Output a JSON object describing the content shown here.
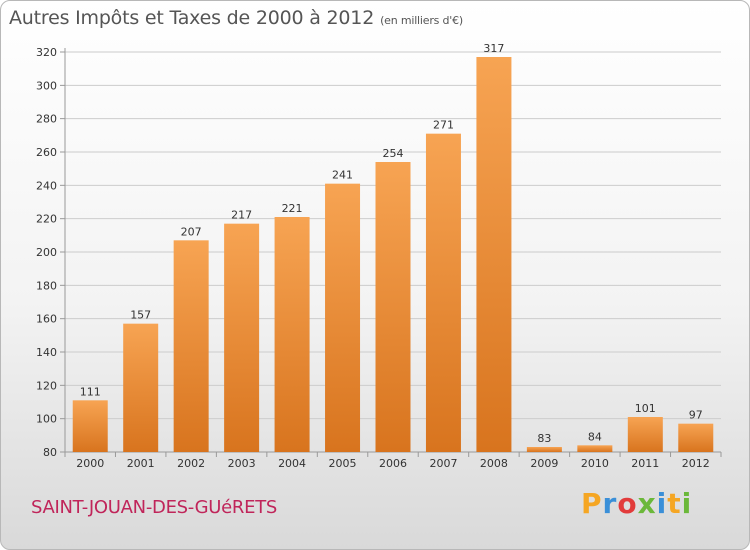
{
  "header": {
    "title": "Autres Impôts et Taxes de 2000 à 2012",
    "unit": "(en milliers d'€)"
  },
  "commune": "SAINT-JOUAN-DES-GUéRETS",
  "logo": {
    "letters": [
      "P",
      "r",
      "o",
      "x",
      "i",
      "t",
      "i"
    ],
    "colors": [
      "#f5a623",
      "#3a8fd8",
      "#e23b3b",
      "#6bb83a",
      "#3a8fd8",
      "#f5a623",
      "#6bb83a"
    ]
  },
  "colors": {
    "bar_top": "#f7a453",
    "bar_bottom": "#d8741e",
    "grid": "#cccccc",
    "axis": "#999999"
  },
  "chart_data": {
    "type": "bar",
    "title": "Autres Impôts et Taxes de 2000 à 2012",
    "xlabel": "",
    "ylabel": "",
    "categories": [
      "2000",
      "2001",
      "2002",
      "2003",
      "2004",
      "2005",
      "2006",
      "2007",
      "2008",
      "2009",
      "2010",
      "2011",
      "2012"
    ],
    "values": [
      111,
      157,
      207,
      217,
      221,
      241,
      254,
      271,
      317,
      83,
      84,
      101,
      97
    ],
    "ylim": [
      80,
      320
    ],
    "yticks": [
      80,
      100,
      120,
      140,
      160,
      180,
      200,
      220,
      240,
      260,
      280,
      300,
      320
    ],
    "grid": true,
    "data_labels": true
  }
}
